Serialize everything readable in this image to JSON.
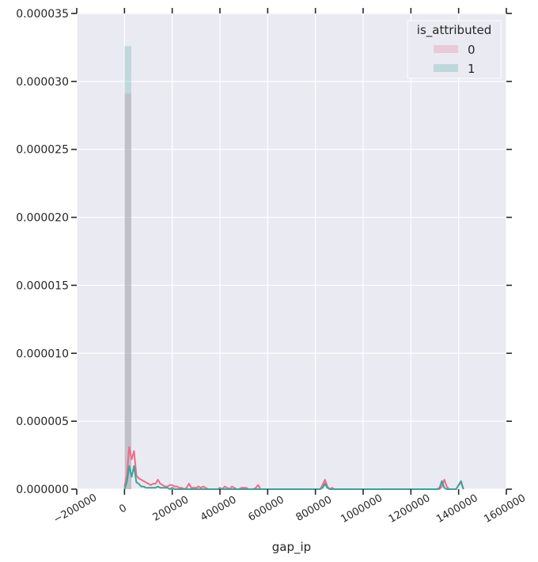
{
  "chart_data": {
    "type": "histogram",
    "xlabel": "gap_ip",
    "ylabel": "",
    "xlim": [
      -200000,
      1600000
    ],
    "ylim": [
      0,
      3.5e-05
    ],
    "x_ticks": [
      -200000,
      0,
      200000,
      400000,
      600000,
      800000,
      1000000,
      1200000,
      1400000,
      1600000
    ],
    "x_tick_labels": [
      "−200000",
      "0",
      "200000",
      "400000",
      "600000",
      "800000",
      "1000000",
      "1200000",
      "1400000",
      "1600000"
    ],
    "y_ticks": [
      0,
      5e-06,
      1e-05,
      1.5e-05,
      2e-05,
      2.5e-05,
      3e-05,
      3.5e-05
    ],
    "y_tick_labels": [
      "0.000000",
      "0.000005",
      "0.000010",
      "0.000015",
      "0.000020",
      "0.000025",
      "0.000030",
      "0.000035"
    ],
    "grid": true,
    "legend": {
      "title": "is_attributed",
      "placement": "top-right",
      "entries": [
        {
          "label": "0",
          "color": "#f06a88"
        },
        {
          "label": "1",
          "color": "#3aa39a"
        }
      ]
    },
    "series": [
      {
        "name": "0",
        "color": "#f06a88",
        "hist_bins": [
          {
            "x0": 0,
            "x1": 28500,
            "density": 2.91e-05
          }
        ],
        "kde_x": [
          0,
          10000,
          20000,
          30000,
          40000,
          50000,
          60000,
          70000,
          80000,
          90000,
          100000,
          110000,
          120000,
          130000,
          140000,
          150000,
          160000,
          170000,
          180000,
          190000,
          200000,
          210000,
          220000,
          230000,
          240000,
          250000,
          260000,
          270000,
          280000,
          290000,
          300000,
          310000,
          320000,
          330000,
          340000,
          350000,
          360000,
          370000,
          380000,
          390000,
          400000,
          410000,
          420000,
          430000,
          440000,
          450000,
          460000,
          470000,
          480000,
          490000,
          500000,
          510000,
          520000,
          530000,
          540000,
          550000,
          560000,
          570000,
          780000,
          790000,
          800000,
          810000,
          820000,
          830000,
          840000,
          850000,
          860000,
          870000,
          880000,
          890000,
          900000,
          1290000,
          1300000,
          1310000,
          1320000,
          1330000,
          1340000,
          1350000,
          1360000,
          1370000,
          1380000,
          1390000,
          1400000,
          1410000,
          1420000
        ],
        "kde_y": [
          2e-07,
          1e-06,
          3.1e-06,
          2.2e-06,
          2.8e-06,
          1e-06,
          8e-07,
          7e-07,
          6e-07,
          5e-07,
          4e-07,
          3e-07,
          4e-07,
          4e-07,
          7e-07,
          4e-07,
          3e-07,
          2e-07,
          2e-07,
          3e-07,
          3e-07,
          2e-07,
          2e-07,
          1e-07,
          1e-07,
          0.0,
          1e-07,
          4e-07,
          1e-07,
          1e-07,
          1e-07,
          2e-07,
          1e-07,
          2e-07,
          1e-07,
          0.0,
          0.0,
          0.0,
          0.0,
          0.0,
          1e-07,
          0.0,
          2e-07,
          1e-07,
          0.0,
          2e-07,
          1e-07,
          0.0,
          0.0,
          1e-07,
          1e-07,
          1e-07,
          0.0,
          0.0,
          0.0,
          1e-07,
          3e-07,
          0.0,
          0.0,
          0.0,
          0.0,
          0.0,
          0.0,
          3e-07,
          7e-07,
          2e-07,
          0.0,
          1e-07,
          0.0,
          0.0,
          0.0,
          0.0,
          0.0,
          0.0,
          0.0,
          2e-07,
          7e-07,
          2e-07,
          0.0,
          0.0,
          0.0,
          0.0,
          3e-07,
          5e-07,
          0.0
        ]
      },
      {
        "name": "1",
        "color": "#3aa39a",
        "hist_bins": [
          {
            "x0": 0,
            "x1": 28500,
            "density": 3.26e-05
          }
        ],
        "kde_x": [
          0,
          10000,
          20000,
          30000,
          40000,
          50000,
          60000,
          70000,
          80000,
          90000,
          100000,
          110000,
          120000,
          130000,
          140000,
          150000,
          160000,
          170000,
          180000,
          190000,
          200000,
          210000,
          220000,
          230000,
          240000,
          250000,
          260000,
          780000,
          790000,
          800000,
          810000,
          820000,
          830000,
          840000,
          850000,
          860000,
          1290000,
          1300000,
          1310000,
          1320000,
          1330000,
          1340000,
          1350000,
          1380000,
          1390000,
          1400000,
          1410000,
          1420000
        ],
        "kde_y": [
          0.0,
          5e-07,
          1.7e-06,
          9e-07,
          1.7e-06,
          5e-07,
          4e-07,
          2e-07,
          2e-07,
          1e-07,
          1e-07,
          1e-07,
          1e-07,
          1e-07,
          2e-07,
          1e-07,
          1e-07,
          1e-07,
          1e-07,
          0.0,
          1e-07,
          0.0,
          0.0,
          0.0,
          0.0,
          0.0,
          0.0,
          0.0,
          0.0,
          0.0,
          0.0,
          0.0,
          1e-07,
          4e-07,
          1e-07,
          0.0,
          0.0,
          0.0,
          0.0,
          1e-07,
          6e-07,
          1e-07,
          0.0,
          0.0,
          0.0,
          3e-07,
          6e-07,
          0.0
        ]
      }
    ]
  }
}
